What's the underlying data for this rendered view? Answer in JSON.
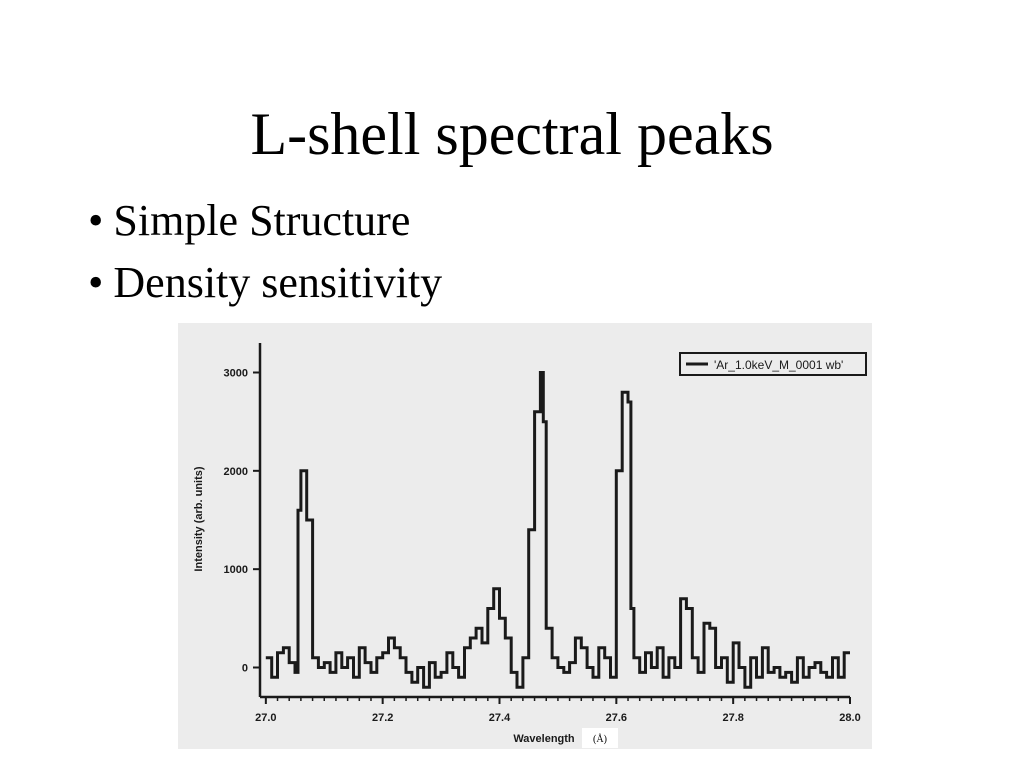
{
  "slide": {
    "title": "L-shell spectral peaks",
    "bullets": [
      "Simple Structure",
      "Density sensitivity"
    ]
  },
  "chart_data": {
    "type": "line",
    "legend": "'Ar_1.0keV_M_0001 wb'",
    "legend_position": "top-right",
    "xlabel": "Wavelength",
    "xlabel_unit": "(Å)",
    "ylabel": "Intensity (arb. units)",
    "xlim": [
      26.99,
      28.0
    ],
    "ylim": [
      -300,
      3300
    ],
    "xticks": [
      "27.0",
      "27.2",
      "27.4",
      "27.6",
      "27.8",
      "28.0"
    ],
    "yticks": [
      "0",
      "1000",
      "2000",
      "3000"
    ],
    "grid": false,
    "series": [
      {
        "style": "step",
        "x": [
          27.0,
          27.01,
          27.02,
          27.03,
          27.04,
          27.05,
          27.055,
          27.06,
          27.07,
          27.08,
          27.09,
          27.1,
          27.11,
          27.12,
          27.13,
          27.14,
          27.15,
          27.16,
          27.17,
          27.18,
          27.19,
          27.2,
          27.21,
          27.22,
          27.23,
          27.24,
          27.25,
          27.26,
          27.27,
          27.28,
          27.29,
          27.3,
          27.31,
          27.32,
          27.33,
          27.34,
          27.35,
          27.36,
          27.37,
          27.38,
          27.39,
          27.4,
          27.41,
          27.42,
          27.43,
          27.44,
          27.45,
          27.46,
          27.47,
          27.475,
          27.48,
          27.49,
          27.5,
          27.51,
          27.52,
          27.53,
          27.54,
          27.55,
          27.56,
          27.57,
          27.58,
          27.59,
          27.6,
          27.61,
          27.62,
          27.625,
          27.63,
          27.64,
          27.65,
          27.66,
          27.67,
          27.68,
          27.69,
          27.7,
          27.71,
          27.72,
          27.73,
          27.74,
          27.75,
          27.76,
          27.77,
          27.78,
          27.79,
          27.8,
          27.81,
          27.82,
          27.83,
          27.84,
          27.85,
          27.86,
          27.87,
          27.88,
          27.89,
          27.9,
          27.91,
          27.92,
          27.93,
          27.94,
          27.95,
          27.96,
          27.97,
          27.98,
          27.99
        ],
        "y": [
          100,
          -100,
          150,
          200,
          50,
          -50,
          1600,
          2000,
          1500,
          100,
          0,
          50,
          -50,
          150,
          0,
          100,
          -100,
          200,
          50,
          -50,
          100,
          150,
          300,
          200,
          100,
          -50,
          -150,
          0,
          -200,
          50,
          -100,
          -50,
          150,
          0,
          -100,
          200,
          300,
          400,
          250,
          600,
          800,
          500,
          300,
          -50,
          -200,
          100,
          1400,
          2600,
          3000,
          2500,
          400,
          100,
          0,
          -50,
          50,
          300,
          200,
          0,
          -100,
          200,
          100,
          -100,
          2000,
          2800,
          2700,
          600,
          100,
          -50,
          150,
          0,
          200,
          -100,
          100,
          0,
          700,
          600,
          100,
          -50,
          450,
          400,
          0,
          100,
          -150,
          250,
          0,
          -200,
          100,
          -100,
          200,
          -50,
          0,
          -100,
          -50,
          -150,
          100,
          -100,
          0,
          50,
          -50,
          -100,
          100,
          -100,
          150
        ]
      }
    ]
  }
}
